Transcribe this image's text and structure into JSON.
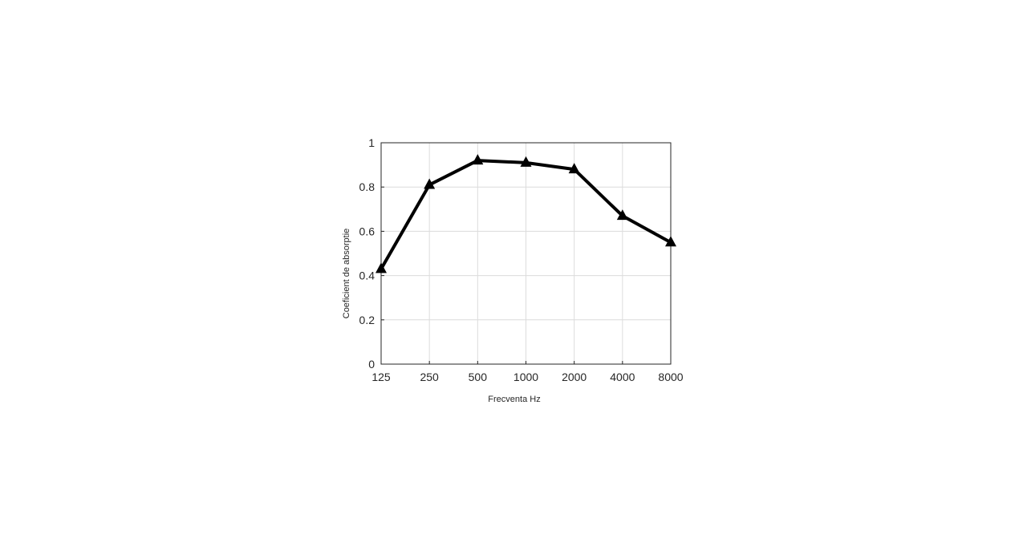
{
  "chart_data": {
    "type": "line",
    "xlabel": "Frecventa Hz",
    "ylabel": "Coeficient de absorptie",
    "x": [
      125,
      250,
      500,
      1000,
      2000,
      4000,
      8000
    ],
    "series": [
      {
        "color": "#000000",
        "values": [
          0.43,
          0.81,
          0.92,
          0.91,
          0.88,
          0.67,
          0.55
        ]
      }
    ],
    "xscale": "log",
    "xlim": [
      125,
      8000
    ],
    "xticks": [
      125,
      250,
      500,
      1000,
      2000,
      4000,
      8000
    ],
    "ylim": [
      0,
      1
    ],
    "yticks": [
      0,
      0.2,
      0.4,
      0.6,
      0.8,
      1
    ],
    "grid": true
  }
}
